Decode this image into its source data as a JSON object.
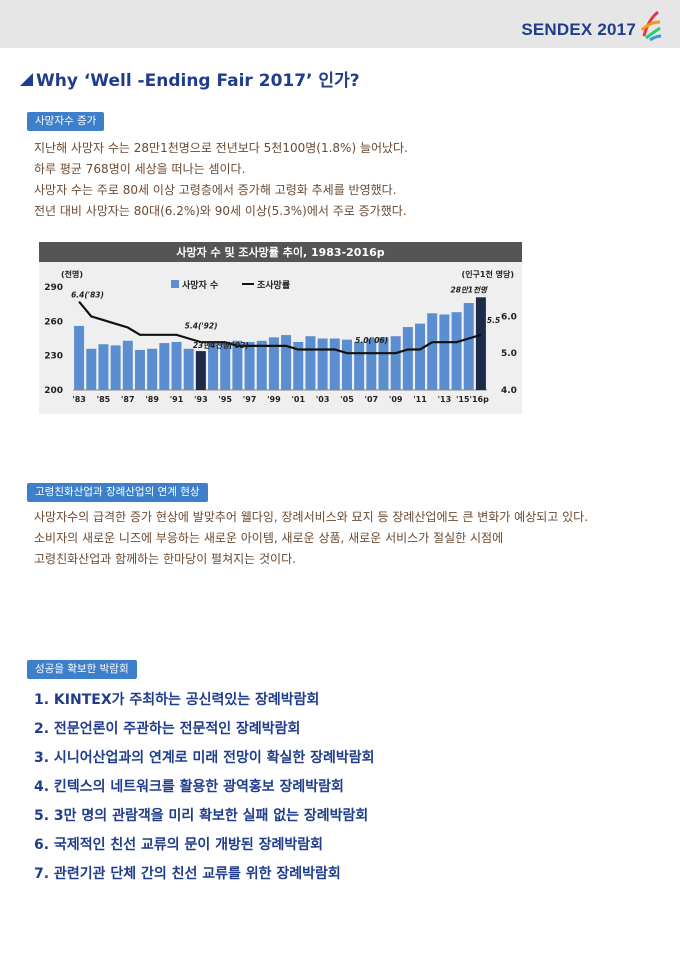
{
  "header": {
    "logo_text": "SENDEX 2017",
    "logo_colors": [
      "#e8344a",
      "#f39c12",
      "#2ecc71",
      "#3498db",
      "#9b59b6"
    ]
  },
  "title": "Why ‘Well -Ending Fair 2017’ 인가?",
  "sections": [
    {
      "tag": "사망자수 증가",
      "lines": [
        "지난해 사망자 수는 28만1천명으로 전년보다 5천100명(1.8%) 늘어났다.",
        "하루 평균 768명이 세상을 떠나는 셈이다.",
        "사망자 수는 주로 80세 이상 고령층에서 증가해 고령화 추세를 반영했다.",
        "전년 대비 사망자는 80대(6.2%)와 90세 이상(5.3%)에서 주로 증가했다."
      ]
    },
    {
      "tag": "고령친화산업과 장례산업의 연계 현상",
      "lines": [
        "사망자수의 급격한 증가 현상에 발맞추어 웰다잉, 장례서비스와 묘지 등 장례산업에도 큰 변화가 예상되고 있다.",
        "소비자의 새로운 니즈에 부응하는 새로운 아이템, 새로운 상품, 새로운 서비스가 절실한 시점에",
        "고령친화산업과 함께하는 한마당이 펼쳐지는 것이다."
      ]
    },
    {
      "tag": "성공을 확보한 박람회",
      "items": [
        "1. KINTEX가 주최하는 공신력있는 장례박람회",
        "2. 전문언론이 주관하는 전문적인 장례박람회",
        "3. 시니어산업과의 연계로 미래 전망이 확실한 장례박람회",
        "4. 킨텍스의 네트워크를 활용한 광역홍보 장례박람회",
        "5. 3만 명의 관람객을 미리 확보한 실패 없는 장례박람회",
        "6. 국제적인 친선 교류의 문이 개방된 장례박람회",
        "7. 관련기관 단체 간의 친선 교류를 위한 장례박람회"
      ]
    }
  ],
  "chart_data": {
    "type": "bar",
    "title": "사망자 수 및 조사망률 추이, 1983-2016p",
    "left_unit": "(천명)",
    "right_unit": "(인구1천 명당)",
    "legend": [
      "사망자 수",
      "조사망률"
    ],
    "legend_position": "top-left",
    "categories": [
      "'83",
      "'84",
      "'85",
      "'86",
      "'87",
      "'88",
      "'89",
      "'90",
      "'91",
      "'92",
      "'93",
      "'94",
      "'95",
      "'96",
      "'97",
      "'98",
      "'99",
      "'00",
      "'01",
      "'02",
      "'03",
      "'04",
      "'05",
      "'06",
      "'07",
      "'08",
      "'09",
      "'10",
      "'11",
      "'12",
      "'13",
      "'14",
      "'15",
      "'16p"
    ],
    "tick_labels": [
      "'83",
      "'85",
      "'87",
      "'89",
      "'91",
      "'93",
      "'95",
      "'97",
      "'99",
      "'01",
      "'03",
      "'05",
      "'07",
      "'09",
      "'11",
      "'13",
      "'15'16p"
    ],
    "series": [
      {
        "name": "사망자 수",
        "axis": "left",
        "values": [
          256,
          236,
          240,
          239,
          243,
          235,
          236,
          241,
          242,
          236,
          234,
          242,
          242,
          243,
          242,
          243,
          246,
          248,
          242,
          247,
          245,
          245,
          244,
          242,
          245,
          246,
          247,
          255,
          258,
          267,
          266,
          268,
          276,
          281
        ]
      },
      {
        "name": "조사망률",
        "axis": "right",
        "values": [
          6.4,
          6.0,
          5.9,
          5.8,
          5.7,
          5.5,
          5.5,
          5.5,
          5.5,
          5.4,
          5.3,
          5.3,
          5.3,
          5.2,
          5.2,
          5.2,
          5.2,
          5.2,
          5.1,
          5.1,
          5.1,
          5.1,
          5.0,
          5.0,
          5.0,
          5.0,
          5.0,
          5.1,
          5.1,
          5.3,
          5.3,
          5.3,
          5.4,
          5.5
        ]
      }
    ],
    "ylim_left": [
      200,
      290
    ],
    "yticks_left": [
      200,
      230,
      260,
      290
    ],
    "ylim_right": [
      4.0,
      6.8
    ],
    "yticks_right": [
      4.0,
      5.0,
      6.0
    ],
    "annotations": [
      "6.4('83)",
      "5.4('92)",
      "23만4천명('93)",
      "5.0('06)",
      "28만1천명",
      "5.5"
    ],
    "highlight_index": 10,
    "last_index": 33,
    "colors": {
      "bar": "#5b8ed0",
      "bar_highlight": "#1f2a4a",
      "bar_last": "#1f2a4a",
      "line": "#111111",
      "title_bg": "#555555",
      "panel_bg": "#efefef"
    }
  }
}
